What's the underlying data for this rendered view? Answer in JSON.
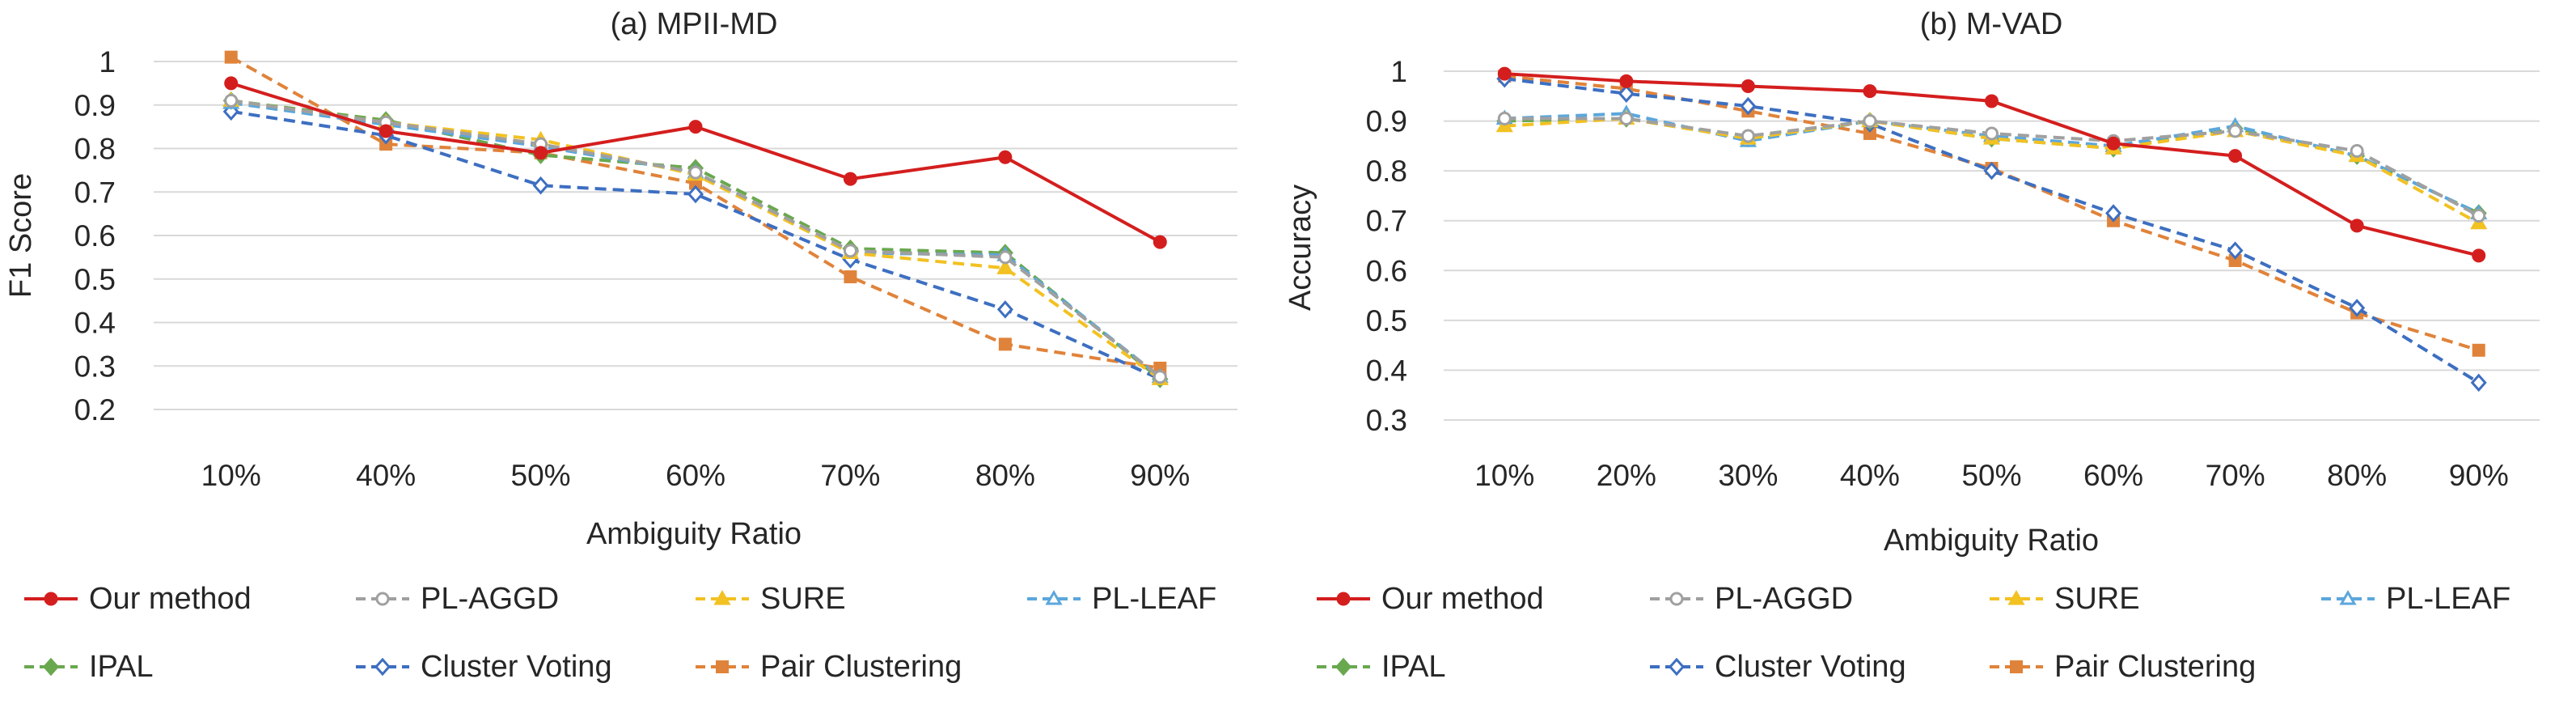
{
  "chart_data": [
    {
      "type": "line",
      "title": "(a) MPII-MD",
      "xlabel": "Ambiguity Ratio",
      "ylabel": "F1 Score",
      "categories": [
        "10%",
        "40%",
        "50%",
        "60%",
        "70%",
        "80%",
        "90%"
      ],
      "ylim": [
        0.2,
        1.0
      ],
      "yticks": [
        0.2,
        0.3,
        0.4,
        0.5,
        0.6,
        0.7,
        0.8,
        0.9,
        1.0
      ],
      "ytick_labels": [
        "0.2",
        "0.3",
        "0.4",
        "0.5",
        "0.6",
        "0.7",
        "0.8",
        "0.9",
        "1"
      ],
      "grid": true,
      "series": [
        {
          "name": "Our method",
          "values": [
            0.95,
            0.84,
            0.79,
            0.85,
            0.73,
            0.78,
            0.585
          ]
        },
        {
          "name": "PL-AGGD",
          "values": [
            0.91,
            0.86,
            0.81,
            0.745,
            0.565,
            0.55,
            0.275
          ]
        },
        {
          "name": "SURE",
          "values": [
            0.91,
            0.86,
            0.82,
            0.74,
            0.56,
            0.525,
            0.27
          ]
        },
        {
          "name": "PL-LEAF",
          "values": [
            0.905,
            0.855,
            0.805,
            0.745,
            0.56,
            0.555,
            0.275
          ]
        },
        {
          "name": "IPAL",
          "values": [
            0.91,
            0.865,
            0.785,
            0.755,
            0.57,
            0.56,
            0.27
          ]
        },
        {
          "name": "Cluster Voting",
          "values": [
            0.885,
            0.83,
            0.715,
            0.695,
            0.545,
            0.43,
            0.27
          ]
        },
        {
          "name": "Pair Clustering",
          "values": [
            1.01,
            0.81,
            0.79,
            0.72,
            0.505,
            0.35,
            0.295
          ]
        }
      ]
    },
    {
      "type": "line",
      "title": "(b) M-VAD",
      "xlabel": "Ambiguity Ratio",
      "ylabel": "Accuracy",
      "categories": [
        "10%",
        "20%",
        "30%",
        "40%",
        "50%",
        "60%",
        "70%",
        "80%",
        "90%"
      ],
      "ylim": [
        0.3,
        1.0
      ],
      "yticks": [
        0.3,
        0.4,
        0.5,
        0.6,
        0.7,
        0.8,
        0.9,
        1.0
      ],
      "ytick_labels": [
        "0.3",
        "0.4",
        "0.5",
        "0.6",
        "0.7",
        "0.8",
        "0.9",
        "1"
      ],
      "grid": true,
      "series": [
        {
          "name": "Our method",
          "values": [
            0.995,
            0.98,
            0.97,
            0.96,
            0.94,
            0.855,
            0.83,
            0.69,
            0.63
          ]
        },
        {
          "name": "PL-AGGD",
          "values": [
            0.905,
            0.905,
            0.87,
            0.9,
            0.875,
            0.86,
            0.88,
            0.84,
            0.71
          ]
        },
        {
          "name": "SURE",
          "values": [
            0.89,
            0.905,
            0.865,
            0.9,
            0.865,
            0.845,
            0.88,
            0.83,
            0.695
          ]
        },
        {
          "name": "PL-LEAF",
          "values": [
            0.905,
            0.915,
            0.86,
            0.9,
            0.87,
            0.85,
            0.89,
            0.83,
            0.715
          ]
        },
        {
          "name": "IPAL",
          "values": [
            0.9,
            0.905,
            0.865,
            0.9,
            0.865,
            0.845,
            0.885,
            0.83,
            0.715
          ]
        },
        {
          "name": "Cluster Voting",
          "values": [
            0.985,
            0.955,
            0.93,
            0.895,
            0.8,
            0.715,
            0.64,
            0.525,
            0.375
          ]
        },
        {
          "name": "Pair Clustering",
          "values": [
            0.99,
            0.965,
            0.92,
            0.875,
            0.805,
            0.7,
            0.62,
            0.515,
            0.44
          ]
        }
      ]
    }
  ],
  "legend": {
    "entries": [
      {
        "name": "Our method",
        "color": "#d41e1e",
        "marker": "circle",
        "marker_fill": "#d41e1e",
        "dash": "solid"
      },
      {
        "name": "PL-AGGD",
        "color": "#a0a0a0",
        "marker": "circle",
        "marker_fill": "#ffffff",
        "dash": "dashed"
      },
      {
        "name": "SURE",
        "color": "#f2c122",
        "marker": "triangle",
        "marker_fill": "#f2c122",
        "dash": "dashed"
      },
      {
        "name": "PL-LEAF",
        "color": "#5ba7dc",
        "marker": "triangle",
        "marker_fill": "#ffffff",
        "dash": "dashed"
      },
      {
        "name": "IPAL",
        "color": "#6aa84f",
        "marker": "diamond",
        "marker_fill": "#6aa84f",
        "dash": "dashed"
      },
      {
        "name": "Cluster Voting",
        "color": "#3d6fc1",
        "marker": "diamond",
        "marker_fill": "#ffffff",
        "dash": "dashed"
      },
      {
        "name": "Pair Clustering",
        "color": "#e0833a",
        "marker": "square",
        "marker_fill": "#e0833a",
        "dash": "dashed"
      }
    ]
  }
}
